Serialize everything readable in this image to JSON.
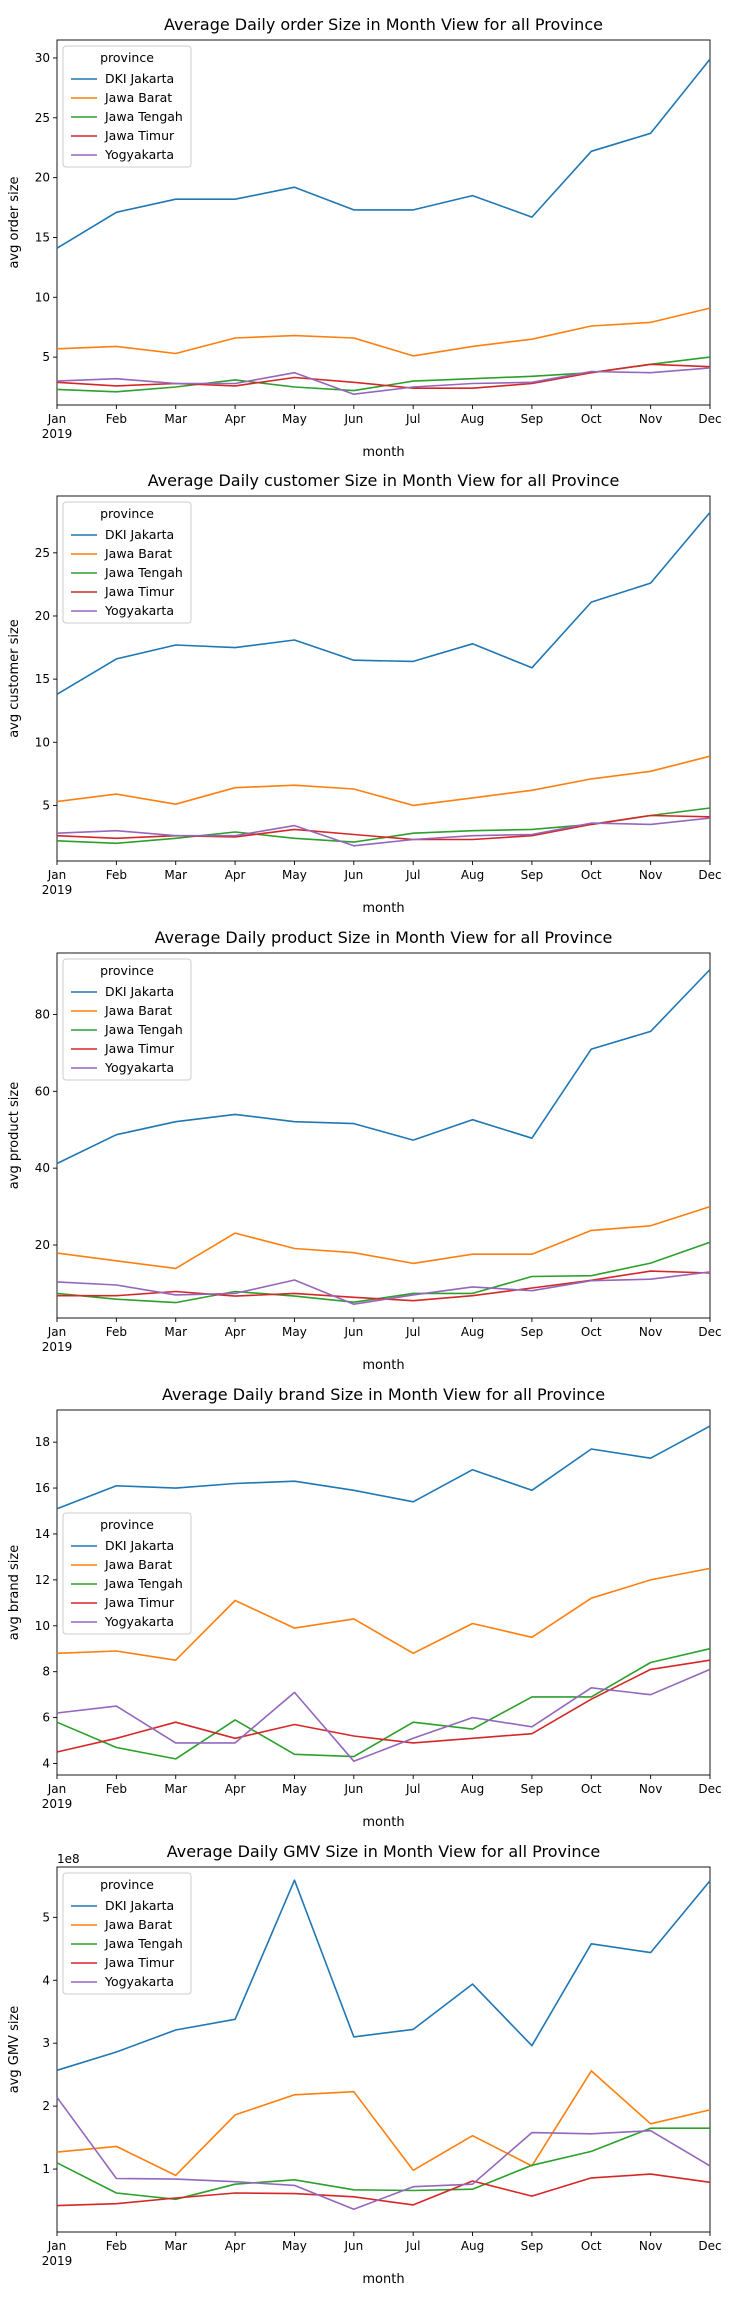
{
  "months": [
    "Jan",
    "Feb",
    "Mar",
    "Apr",
    "May",
    "Jun",
    "Jul",
    "Aug",
    "Sep",
    "Oct",
    "Nov",
    "Dec"
  ],
  "year_label": "2019",
  "colors": {
    "DKI Jakarta": "#1f77b4",
    "Jawa Barat": "#ff7f0e",
    "Jawa Tengah": "#2ca02c",
    "Jawa Timur": "#d62728",
    "Yogyakarta": "#9467bd"
  },
  "chart_data": [
    {
      "type": "line",
      "title": "Average Daily order Size in Month View for all Province",
      "xlabel": "month",
      "ylabel": "avg order size",
      "ylim": [
        1.0,
        31.5
      ],
      "yticks": [
        5,
        10,
        15,
        20,
        25,
        30
      ],
      "legend_title": "province",
      "legend_position": "top-left",
      "grid": false,
      "series": [
        {
          "name": "DKI Jakarta",
          "values": [
            14.1,
            17.1,
            18.2,
            18.2,
            19.2,
            17.3,
            17.3,
            18.5,
            16.7,
            22.2,
            23.7,
            29.9
          ]
        },
        {
          "name": "Jawa Barat",
          "values": [
            5.7,
            5.9,
            5.3,
            6.6,
            6.8,
            6.6,
            5.1,
            5.9,
            6.5,
            7.6,
            7.9,
            9.1
          ]
        },
        {
          "name": "Jawa Tengah",
          "values": [
            2.3,
            2.1,
            2.5,
            3.1,
            2.5,
            2.2,
            3.0,
            3.2,
            3.4,
            3.7,
            4.4,
            5.0
          ]
        },
        {
          "name": "Jawa Timur",
          "values": [
            2.9,
            2.6,
            2.8,
            2.6,
            3.3,
            2.9,
            2.4,
            2.4,
            2.8,
            3.7,
            4.4,
            4.2
          ]
        },
        {
          "name": "Yogyakarta",
          "values": [
            3.0,
            3.2,
            2.8,
            2.8,
            3.7,
            1.9,
            2.5,
            2.8,
            2.9,
            3.8,
            3.7,
            4.1
          ]
        }
      ]
    },
    {
      "type": "line",
      "title": "Average Daily customer Size in Month View for all Province",
      "xlabel": "month",
      "ylabel": "avg customer size",
      "ylim": [
        0.6,
        29.5
      ],
      "yticks": [
        5,
        10,
        15,
        20,
        25
      ],
      "legend_title": "province",
      "legend_position": "top-left",
      "grid": false,
      "series": [
        {
          "name": "DKI Jakarta",
          "values": [
            13.8,
            16.6,
            17.7,
            17.5,
            18.1,
            16.5,
            16.4,
            17.8,
            15.9,
            21.1,
            22.6,
            28.2
          ]
        },
        {
          "name": "Jawa Barat",
          "values": [
            5.3,
            5.9,
            5.1,
            6.4,
            6.6,
            6.3,
            5.0,
            5.6,
            6.2,
            7.1,
            7.7,
            8.9
          ]
        },
        {
          "name": "Jawa Tengah",
          "values": [
            2.2,
            2.0,
            2.4,
            2.9,
            2.4,
            2.1,
            2.8,
            3.0,
            3.1,
            3.5,
            4.2,
            4.8
          ]
        },
        {
          "name": "Jawa Timur",
          "values": [
            2.6,
            2.4,
            2.6,
            2.5,
            3.1,
            2.7,
            2.3,
            2.3,
            2.6,
            3.5,
            4.2,
            4.1
          ]
        },
        {
          "name": "Yogyakarta",
          "values": [
            2.8,
            3.0,
            2.6,
            2.6,
            3.4,
            1.8,
            2.3,
            2.6,
            2.7,
            3.6,
            3.5,
            4.0
          ]
        }
      ]
    },
    {
      "type": "line",
      "title": "Average Daily product Size in Month View for all Province",
      "xlabel": "month",
      "ylabel": "avg product size",
      "ylim": [
        1.0,
        96.0
      ],
      "yticks": [
        20,
        40,
        60,
        80
      ],
      "legend_title": "province",
      "legend_position": "top-left",
      "grid": false,
      "series": [
        {
          "name": "DKI Jakarta",
          "values": [
            41.2,
            48.7,
            52.1,
            54.0,
            52.1,
            51.6,
            47.3,
            52.6,
            47.8,
            71.0,
            75.6,
            91.7
          ]
        },
        {
          "name": "Jawa Barat",
          "values": [
            17.9,
            15.9,
            13.9,
            23.1,
            19.1,
            18.0,
            15.2,
            17.6,
            17.6,
            23.8,
            25.0,
            30.0
          ]
        },
        {
          "name": "Jawa Tengah",
          "values": [
            7.4,
            5.9,
            5.0,
            7.9,
            6.7,
            5.1,
            7.4,
            7.4,
            11.8,
            12.0,
            15.3,
            20.7
          ]
        },
        {
          "name": "Jawa Timur",
          "values": [
            6.8,
            6.8,
            7.9,
            6.7,
            7.4,
            6.4,
            5.5,
            6.8,
            8.8,
            10.8,
            13.2,
            12.7
          ]
        },
        {
          "name": "Yogyakarta",
          "values": [
            10.4,
            9.6,
            7.0,
            7.4,
            10.9,
            4.6,
            7.0,
            9.1,
            8.1,
            10.7,
            11.1,
            13.0
          ]
        }
      ]
    },
    {
      "type": "line",
      "title": "Average Daily brand Size in Month View for all Province",
      "xlabel": "month",
      "ylabel": "avg brand size",
      "ylim": [
        3.5,
        19.4
      ],
      "yticks": [
        4,
        6,
        8,
        10,
        12,
        14,
        16,
        18
      ],
      "legend_title": "province",
      "legend_position": "center-left",
      "grid": false,
      "series": [
        {
          "name": "DKI Jakarta",
          "values": [
            15.1,
            16.1,
            16.0,
            16.2,
            16.3,
            15.9,
            15.4,
            16.8,
            15.9,
            17.7,
            17.3,
            18.7
          ]
        },
        {
          "name": "Jawa Barat",
          "values": [
            8.8,
            8.9,
            8.5,
            11.1,
            9.9,
            10.3,
            8.8,
            10.1,
            9.5,
            11.2,
            12.0,
            12.5
          ]
        },
        {
          "name": "Jawa Tengah",
          "values": [
            5.8,
            4.7,
            4.2,
            5.9,
            4.4,
            4.3,
            5.8,
            5.5,
            6.9,
            6.9,
            8.4,
            9.0
          ]
        },
        {
          "name": "Jawa Timur",
          "values": [
            4.5,
            5.1,
            5.8,
            5.1,
            5.7,
            5.2,
            4.9,
            5.1,
            5.3,
            6.8,
            8.1,
            8.5
          ]
        },
        {
          "name": "Yogyakarta",
          "values": [
            6.2,
            6.5,
            4.9,
            4.9,
            7.1,
            4.1,
            5.1,
            6.0,
            5.6,
            7.3,
            7.0,
            8.1
          ]
        }
      ]
    },
    {
      "type": "line",
      "title": "Average Daily GMV Size in Month View for all Province",
      "xlabel": "month",
      "ylabel": "avg GMV size",
      "y_multiplier": "1e8",
      "ylim": [
        0.0,
        5.8
      ],
      "yticks": [
        1,
        2,
        3,
        4,
        5
      ],
      "legend_title": "province",
      "legend_position": "top-left",
      "grid": false,
      "series": [
        {
          "name": "DKI Jakarta",
          "values": [
            2.57,
            2.86,
            3.21,
            3.38,
            5.59,
            3.1,
            3.22,
            3.94,
            2.96,
            4.58,
            4.44,
            5.58
          ]
        },
        {
          "name": "Jawa Barat",
          "values": [
            1.27,
            1.36,
            0.9,
            1.86,
            2.18,
            2.23,
            0.98,
            1.53,
            1.05,
            2.56,
            1.72,
            1.94
          ]
        },
        {
          "name": "Jawa Tengah",
          "values": [
            1.1,
            0.62,
            0.52,
            0.76,
            0.83,
            0.67,
            0.66,
            0.68,
            1.06,
            1.28,
            1.65,
            1.65
          ]
        },
        {
          "name": "Jawa Timur",
          "values": [
            0.42,
            0.45,
            0.54,
            0.62,
            0.61,
            0.56,
            0.43,
            0.81,
            0.57,
            0.86,
            0.92,
            0.79
          ]
        },
        {
          "name": "Yogyakarta",
          "values": [
            2.14,
            0.85,
            0.84,
            0.8,
            0.74,
            0.36,
            0.72,
            0.76,
            1.58,
            1.56,
            1.61,
            1.05
          ]
        }
      ]
    }
  ]
}
